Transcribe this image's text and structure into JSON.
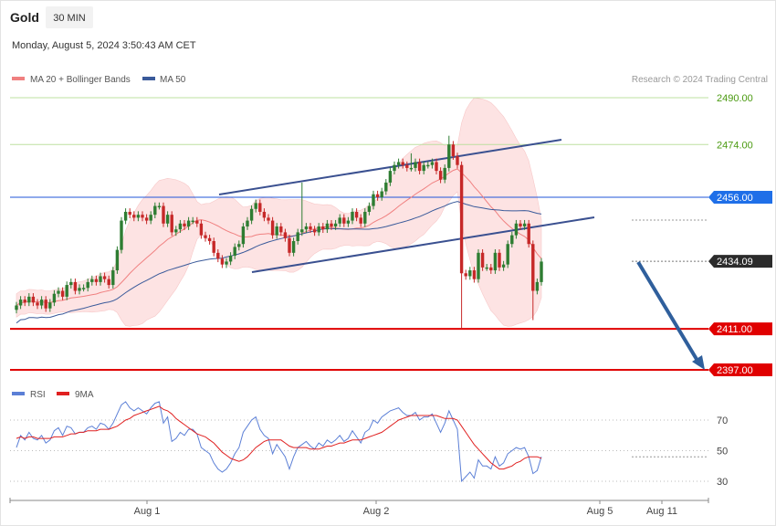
{
  "header": {
    "symbol": "Gold",
    "timeframe": "30 MIN",
    "datetime": "Monday, August 5, 2024 3:50:43 AM CET",
    "credit": "Research © 2024 Trading Central"
  },
  "legend_main": [
    {
      "label": "MA 20 + Bollinger Bands",
      "color": "#f08080"
    },
    {
      "label": "MA 50",
      "color": "#3a5a9a"
    }
  ],
  "legend_rsi": [
    {
      "label": "RSI",
      "color": "#5b7fd6"
    },
    {
      "label": "9MA",
      "color": "#e02020"
    }
  ],
  "colors": {
    "up": "#2e7d32",
    "down": "#c62828",
    "band_fill": "#fde3e3",
    "arrow": "#2f5f9c"
  },
  "chart_data": {
    "type": "line",
    "subtype": "candlestick",
    "x_tick_labels": [
      "Aug 1",
      "Aug 2",
      "Aug 5",
      "Aug 11"
    ],
    "y_range": [
      2382,
      2496
    ],
    "levels": [
      {
        "label": "2490.00",
        "value": 2490.0,
        "kind": "resistance-2"
      },
      {
        "label": "2474.00",
        "value": 2474.0,
        "kind": "resistance-1"
      },
      {
        "label": "2456.00",
        "value": 2456.0,
        "kind": "pivot"
      },
      {
        "label": "2434.09",
        "value": 2434.09,
        "kind": "last-price"
      },
      {
        "label": "2411.00",
        "value": 2411.0,
        "kind": "support-1"
      },
      {
        "label": "2397.00",
        "value": 2397.0,
        "kind": "support-2"
      }
    ],
    "candles_close": [
      2419,
      2421,
      2420,
      2422,
      2420,
      2419,
      2421,
      2418,
      2420,
      2423,
      2424,
      2422,
      2426,
      2427,
      2424,
      2425,
      2425,
      2427,
      2428,
      2427,
      2429,
      2428,
      2426,
      2431,
      2438,
      2448,
      2451,
      2450,
      2449,
      2450,
      2449,
      2448,
      2450,
      2453,
      2453,
      2447,
      2450,
      2444,
      2445,
      2447,
      2446,
      2448,
      2448,
      2447,
      2443,
      2442,
      2441,
      2437,
      2435,
      2433,
      2434,
      2436,
      2439,
      2440,
      2446,
      2448,
      2452,
      2454,
      2451,
      2449,
      2448,
      2443,
      2446,
      2444,
      2442,
      2437,
      2441,
      2444,
      2445,
      2446,
      2445,
      2444,
      2446,
      2445,
      2447,
      2446,
      2447,
      2449,
      2447,
      2448,
      2451,
      2449,
      2447,
      2451,
      2453,
      2457,
      2456,
      2458,
      2461,
      2465,
      2467,
      2468,
      2467,
      2466,
      2466,
      2468,
      2465,
      2467,
      2467,
      2468,
      2465,
      2462,
      2466,
      2474,
      2470,
      2467,
      2430,
      2429,
      2431,
      2428,
      2437,
      2432,
      2432,
      2431,
      2437,
      2432,
      2433,
      2440,
      2443,
      2447,
      2446,
      2447,
      2440,
      2424,
      2427,
      2434
    ],
    "rsi": {
      "ticks": [
        70,
        50,
        30
      ],
      "range": [
        20,
        82
      ],
      "rsi_values": [
        52,
        60,
        57,
        62,
        58,
        57,
        60,
        55,
        57,
        63,
        65,
        60,
        66,
        65,
        61,
        62,
        62,
        65,
        66,
        64,
        68,
        67,
        64,
        68,
        74,
        80,
        82,
        78,
        76,
        78,
        76,
        74,
        78,
        81,
        82,
        68,
        72,
        56,
        58,
        62,
        60,
        64,
        64,
        61,
        52,
        50,
        48,
        42,
        38,
        36,
        38,
        42,
        48,
        52,
        62,
        66,
        70,
        72,
        64,
        60,
        58,
        48,
        54,
        50,
        46,
        38,
        46,
        52,
        54,
        56,
        53,
        51,
        55,
        53,
        57,
        55,
        57,
        60,
        56,
        58,
        63,
        59,
        55,
        62,
        64,
        70,
        68,
        72,
        74,
        76,
        77,
        78,
        75,
        73,
        73,
        75,
        70,
        72,
        72,
        74,
        68,
        62,
        68,
        76,
        70,
        64,
        30,
        33,
        36,
        32,
        44,
        40,
        40,
        38,
        46,
        40,
        42,
        48,
        50,
        52,
        51,
        52,
        46,
        35,
        37,
        46
      ],
      "ma9_values": [
        58,
        59,
        58,
        59,
        59,
        58,
        58,
        58,
        58,
        59,
        59,
        59,
        60,
        61,
        61,
        62,
        62,
        63,
        63,
        63,
        64,
        64,
        64,
        65,
        66,
        68,
        70,
        71,
        73,
        74,
        75,
        76,
        77,
        78,
        79,
        77,
        76,
        74,
        71,
        69,
        67,
        65,
        63,
        61,
        60,
        59,
        57,
        55,
        52,
        49,
        47,
        45,
        44,
        43,
        44,
        46,
        49,
        52,
        54,
        56,
        57,
        57,
        57,
        57,
        55,
        53,
        52,
        52,
        52,
        52,
        51,
        51,
        51,
        52,
        53,
        53,
        54,
        55,
        55,
        56,
        57,
        57,
        57,
        58,
        59,
        60,
        61,
        62,
        64,
        66,
        68,
        70,
        71,
        72,
        73,
        73,
        73,
        73,
        73,
        73,
        73,
        72,
        71,
        71,
        71,
        70,
        66,
        62,
        58,
        54,
        51,
        48,
        45,
        42,
        40,
        38,
        38,
        39,
        40,
        42,
        43,
        45,
        46,
        46,
        46,
        45
      ]
    }
  }
}
